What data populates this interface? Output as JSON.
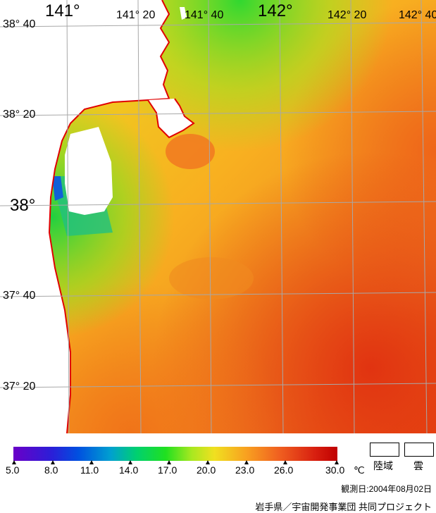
{
  "map": {
    "lon_labels": [
      "141°",
      "141° 20",
      "141° 40",
      "142°",
      "142° 20",
      "142° 40"
    ],
    "lat_labels": [
      "38° 40",
      "38° 20",
      "38°",
      "37° 40",
      "37° 20"
    ]
  },
  "colorbar": {
    "tick_labels": [
      "5.0",
      "8.0",
      "11.0",
      "14.0",
      "17.0",
      "20.0",
      "23.0",
      "26.0",
      "30.0"
    ],
    "unit": "℃",
    "colors": {
      "min": "#6a00c8",
      "low": "#0050e0",
      "mid_low": "#20e020",
      "mid": "#f0e020",
      "mid_high": "#f8a020",
      "high": "#c00000"
    }
  },
  "legend": {
    "land": "陸域",
    "cloud": "雲"
  },
  "observation_date": "観測日:2004年08月02日",
  "credit": "岩手県／宇宙開発事業団 共同プロジェクト"
}
